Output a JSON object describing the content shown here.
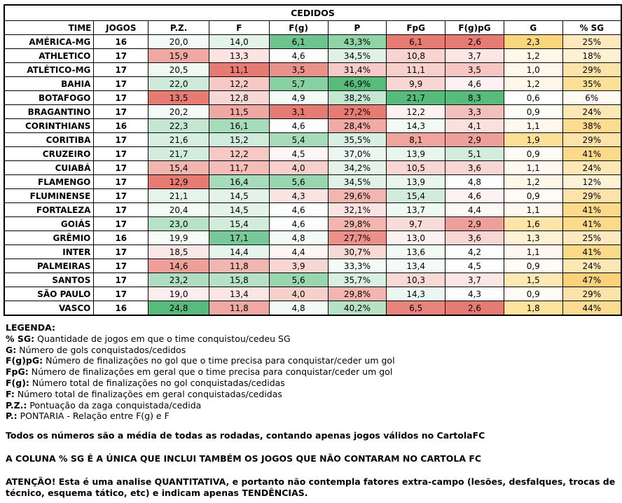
{
  "table": {
    "title": "CEDIDOS",
    "columns": [
      "TIME",
      "JOGOS",
      "P.Z.",
      "F",
      "F(g)",
      "P",
      "FpG",
      "F(g)pG",
      "G",
      "% SG"
    ],
    "rows": [
      [
        "AMÉRICA-MG",
        "16",
        "20,0",
        "14,0",
        "6,1",
        "43,3%",
        "6,1",
        "2,6",
        "2,3",
        "25%"
      ],
      [
        "ATHLETICO",
        "17",
        "15,9",
        "13,3",
        "4,6",
        "34,5%",
        "10,8",
        "3,7",
        "1,2",
        "18%"
      ],
      [
        "ATLÉTICO-MG",
        "17",
        "20,5",
        "11,1",
        "3,5",
        "31,4%",
        "11,1",
        "3,5",
        "1,0",
        "29%"
      ],
      [
        "BAHIA",
        "17",
        "22,0",
        "12,2",
        "5,7",
        "46,9%",
        "9,9",
        "4,6",
        "1,2",
        "35%"
      ],
      [
        "BOTAFOGO",
        "17",
        "13,5",
        "12,8",
        "4,9",
        "38,2%",
        "21,7",
        "8,3",
        "0,6",
        "6%"
      ],
      [
        "BRAGANTINO",
        "17",
        "20,2",
        "11,5",
        "3,1",
        "27,2%",
        "12,2",
        "3,3",
        "0,9",
        "24%"
      ],
      [
        "CORINTHIANS",
        "16",
        "22,3",
        "16,1",
        "4,6",
        "28,4%",
        "14,3",
        "4,1",
        "1,1",
        "38%"
      ],
      [
        "CORITIBA",
        "17",
        "21,6",
        "15,2",
        "5,4",
        "35,5%",
        "8,1",
        "2,9",
        "1,9",
        "29%"
      ],
      [
        "CRUZEIRO",
        "17",
        "21,7",
        "12,2",
        "4,5",
        "37,0%",
        "13,9",
        "5,1",
        "0,9",
        "41%"
      ],
      [
        "CUIABÁ",
        "17",
        "15,4",
        "11,7",
        "4,0",
        "34,2%",
        "10,5",
        "3,6",
        "1,1",
        "24%"
      ],
      [
        "FLAMENGO",
        "17",
        "12,9",
        "16,4",
        "5,6",
        "34,5%",
        "13,9",
        "4,8",
        "1,2",
        "12%"
      ],
      [
        "FLUMINENSE",
        "17",
        "21,1",
        "14,5",
        "4,3",
        "29,6%",
        "15,4",
        "4,6",
        "0,9",
        "29%"
      ],
      [
        "FORTALEZA",
        "17",
        "20,4",
        "14,5",
        "4,6",
        "32,1%",
        "13,7",
        "4,4",
        "1,1",
        "41%"
      ],
      [
        "GOIÁS",
        "17",
        "23,0",
        "15,4",
        "4,6",
        "29,8%",
        "9,7",
        "2,9",
        "1,6",
        "41%"
      ],
      [
        "GRÊMIO",
        "16",
        "19,9",
        "17,1",
        "4,8",
        "27,7%",
        "13,0",
        "3,6",
        "1,3",
        "25%"
      ],
      [
        "INTER",
        "17",
        "18,5",
        "14,4",
        "4,4",
        "30,7%",
        "13,6",
        "4,2",
        "1,1",
        "41%"
      ],
      [
        "PALMEIRAS",
        "17",
        "14,6",
        "11,8",
        "3,9",
        "33,3%",
        "13,4",
        "4,5",
        "0,9",
        "24%"
      ],
      [
        "SANTOS",
        "17",
        "23,2",
        "15,8",
        "5,6",
        "35,7%",
        "10,3",
        "3,7",
        "1,5",
        "47%"
      ],
      [
        "SÃO PAULO",
        "17",
        "19,0",
        "13,4",
        "4,0",
        "29,8%",
        "14,3",
        "4,3",
        "0,9",
        "29%"
      ],
      [
        "VASCO",
        "16",
        "24,8",
        "11,8",
        "4,8",
        "40,2%",
        "6,5",
        "2,6",
        "1,8",
        "44%"
      ]
    ],
    "cell_colors": [
      [
        "#ffffff",
        "#ffffff",
        "#f2fbf5",
        "#e3f3e8",
        "#6dc48e",
        "#8fd3a7",
        "#e57b73",
        "#e57b73",
        "#fbd67c",
        "#fde9bd"
      ],
      [
        "#ffffff",
        "#ffffff",
        "#f0a8a2",
        "#fbe3e1",
        "#fbfefc",
        "#e0f1e6",
        "#f8d3d0",
        "#fbe6e4",
        "#fff8e8",
        "#fef0d3"
      ],
      [
        "#ffffff",
        "#ffffff",
        "#eef9f2",
        "#e57b73",
        "#e9928b",
        "#f6cac6",
        "#f7d0cc",
        "#f5c6c2",
        "#fff7ec",
        "#fde3a9"
      ],
      [
        "#ffffff",
        "#ffffff",
        "#cdebd8",
        "#f7c9c5",
        "#87d0a2",
        "#57bb7b",
        "#f8d6d3",
        "#fdf2f1",
        "#fff8e8",
        "#fde097"
      ],
      [
        "#ffffff",
        "#ffffff",
        "#e57b73",
        "#f8d8d5",
        "#f2fbf5",
        "#c4e7d1",
        "#57bb7b",
        "#57bb7b",
        "#ffffff",
        "#fffbf2"
      ],
      [
        "#ffffff",
        "#ffffff",
        "#f4fbf7",
        "#f0a8a2",
        "#e57b73",
        "#e57b73",
        "#fdf2f1",
        "#f2c0bc",
        "#fffcf6",
        "#fde7b5"
      ],
      [
        "#ffffff",
        "#ffffff",
        "#c4e7d1",
        "#a6dcb9",
        "#fbfefc",
        "#f0aba5",
        "#f1faf4",
        "#fae1de",
        "#fff8ee",
        "#fddc8f"
      ],
      [
        "#ffffff",
        "#ffffff",
        "#d6efe0",
        "#cfecda",
        "#a6dcb9",
        "#d8efe1",
        "#efa49e",
        "#ed9f99",
        "#fde097",
        "#fde3a9"
      ],
      [
        "#ffffff",
        "#ffffff",
        "#d3eddd",
        "#f7c9c5",
        "#fdf6f5",
        "#ebf7f0",
        "#e8f6ed",
        "#d3eddd",
        "#fffcf6",
        "#fdd98a"
      ],
      [
        "#ffffff",
        "#ffffff",
        "#f3b5b0",
        "#f4bdb8",
        "#f7d0cc",
        "#e3f3e8",
        "#f8d6d3",
        "#f8d6d3",
        "#fff8ee",
        "#fde7b5"
      ],
      [
        "#ffffff",
        "#ffffff",
        "#e57b73",
        "#a6dcb9",
        "#97d6ae",
        "#e0f1e6",
        "#e8f6ed",
        "#fcfffd",
        "#fff8e8",
        "#fff2d6"
      ],
      [
        "#ffffff",
        "#ffffff",
        "#e4f4ea",
        "#e3f3e8",
        "#fbe3e1",
        "#f2b5b0",
        "#d2ecdc",
        "#fdf2f1",
        "#fffcf6",
        "#fde3a9"
      ],
      [
        "#ffffff",
        "#ffffff",
        "#f2fbf5",
        "#e3f3e8",
        "#fbfefc",
        "#fbe3e1",
        "#eef9f2",
        "#fdf7f6",
        "#fff8ee",
        "#fdd98a"
      ],
      [
        "#ffffff",
        "#ffffff",
        "#b8e2c6",
        "#d1edda",
        "#fbfefc",
        "#f2b5b0",
        "#f9dcda",
        "#ed9f99",
        "#fee4a8",
        "#fdd98a"
      ],
      [
        "#ffffff",
        "#ffffff",
        "#f6fbf8",
        "#79c899",
        "#f1faf4",
        "#eb918a",
        "#fbf1f0",
        "#f8d6d3",
        "#fff1d4",
        "#fde9bd"
      ],
      [
        "#ffffff",
        "#ffffff",
        "#fbe7e5",
        "#e6f5ec",
        "#fdf6f5",
        "#f8d9d6",
        "#f1faf4",
        "#fbfefd",
        "#fff8ee",
        "#fdd98a"
      ],
      [
        "#ffffff",
        "#ffffff",
        "#ef9f98",
        "#f2b5b0",
        "#f8d6d3",
        "#f2fbf5",
        "#f3fbf6",
        "#fcfffd",
        "#fffcf6",
        "#fde7b5"
      ],
      [
        "#ffffff",
        "#ffffff",
        "#aeddbf",
        "#b5e1c4",
        "#97d6ae",
        "#d8efe1",
        "#f8d9d6",
        "#fbe6e4",
        "#fee9b5",
        "#fdd17a"
      ],
      [
        "#ffffff",
        "#ffffff",
        "#fceeec",
        "#fbe6e4",
        "#f7d0cc",
        "#f2b5b0",
        "#ebf7f0",
        "#fdfdfd",
        "#fffcf6",
        "#fde3a9"
      ],
      [
        "#ffffff",
        "#ffffff",
        "#57bb7b",
        "#f0a8a2",
        "#f1faf4",
        "#b8e2c6",
        "#e8847c",
        "#e57b73",
        "#fee39f",
        "#fddc91"
      ]
    ]
  },
  "legend": {
    "heading": "LEGENDA:",
    "items": [
      {
        "term": "% SG:",
        "desc": "Quantidade de jogos em que o time conquistou/cedeu SG"
      },
      {
        "term": "G:",
        "desc": "Número de gols conquistados/cedidos"
      },
      {
        "term": "F(g)pG:",
        "desc": "Número de finalizações no gol que o time precisa para conquistar/ceder um gol"
      },
      {
        "term": "FpG:",
        "desc": "Número de finalizações em geral que o time precisa para conquistar/ceder um gol"
      },
      {
        "term": "F(g):",
        "desc": "Número total de finalizações no gol conquistadas/cedidas"
      },
      {
        "term": "F:",
        "desc": "Número total de finalizações em geral conquistadas/cedidas"
      },
      {
        "term": "P.Z.:",
        "desc": "Pontuação da zaga conquistada/cedida"
      },
      {
        "term": "P.:",
        "desc": "PONTARIA - Relação entre F(g) e F"
      }
    ],
    "note1": "Todos os números são a média de todas as rodadas, contando apenas jogos válidos no CartolaFC",
    "note2": "A COLUNA % SG É A ÚNICA QUE INCLUI TAMBÉM OS JOGOS QUE NÃO CONTARAM NO CARTOLA FC",
    "warning_bold1": "ATENÇÃO! Esta é uma analise QUANTITATIVA, e portanto não contempla fatores extra-campo (lesões, desfalques, trocas de técnico, esquema tático, etc) e indicam apenas TENDÊNCIAS."
  }
}
